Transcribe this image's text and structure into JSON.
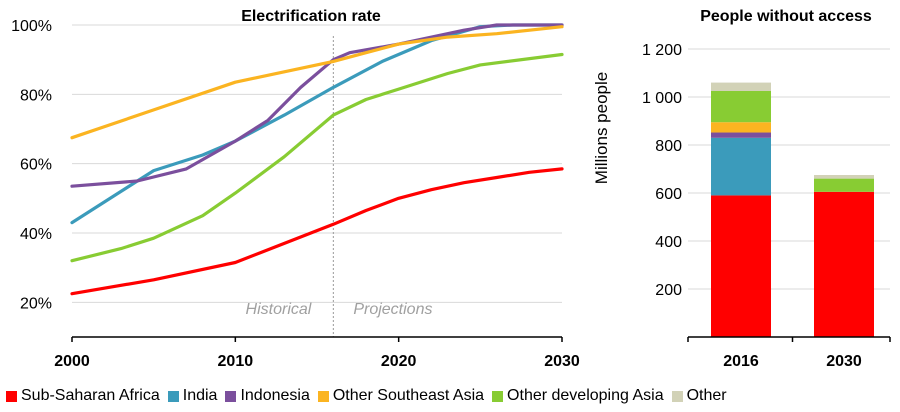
{
  "chart_data": [
    {
      "type": "line",
      "title": "Electrification rate",
      "xlabel": "",
      "ylabel": "",
      "xlim": [
        2000,
        2030
      ],
      "ylim": [
        10,
        100
      ],
      "x_ticks": [
        "2000",
        "2010",
        "2020",
        "2030"
      ],
      "y_ticks": [
        "20%",
        "40%",
        "60%",
        "80%",
        "100%"
      ],
      "grid": "horizontal",
      "annotations": {
        "divider_year": 2016,
        "left_label": "Historical",
        "right_label": "Projections"
      },
      "series": [
        {
          "name": "Sub-Saharan Africa",
          "color": "#ff0000",
          "points": [
            [
              2000,
              22.5
            ],
            [
              2005,
              26.5
            ],
            [
              2010,
              31.5
            ],
            [
              2013,
              37
            ],
            [
              2016,
              42.5
            ],
            [
              2018,
              46.5
            ],
            [
              2020,
              50
            ],
            [
              2022,
              52.5
            ],
            [
              2024,
              54.5
            ],
            [
              2026,
              56
            ],
            [
              2028,
              57.5
            ],
            [
              2030,
              58.5
            ]
          ]
        },
        {
          "name": "India",
          "color": "#3b9bbb",
          "points": [
            [
              2000,
              43
            ],
            [
              2003,
              52
            ],
            [
              2005,
              58
            ],
            [
              2008,
              62.5
            ],
            [
              2010,
              66.5
            ],
            [
              2013,
              74
            ],
            [
              2016,
              82
            ],
            [
              2019,
              89.5
            ],
            [
              2022,
              95.5
            ],
            [
              2025,
              99.5
            ],
            [
              2027,
              100
            ],
            [
              2030,
              100
            ]
          ]
        },
        {
          "name": "Indonesia",
          "color": "#7b4f9d",
          "points": [
            [
              2000,
              53.5
            ],
            [
              2004,
              55
            ],
            [
              2007,
              58.5
            ],
            [
              2010,
              66.5
            ],
            [
              2012,
              72.5
            ],
            [
              2014,
              82
            ],
            [
              2016,
              90
            ],
            [
              2017,
              92
            ],
            [
              2020,
              94.5
            ],
            [
              2024,
              98.5
            ],
            [
              2026,
              100
            ],
            [
              2030,
              100
            ]
          ]
        },
        {
          "name": "Other Southeast Asia",
          "color": "#fbb421",
          "points": [
            [
              2000,
              67.5
            ],
            [
              2005,
              75.5
            ],
            [
              2010,
              83.5
            ],
            [
              2013,
              86.5
            ],
            [
              2016,
              89.5
            ],
            [
              2018,
              92
            ],
            [
              2020,
              94.5
            ],
            [
              2023,
              96.5
            ],
            [
              2026,
              97.5
            ],
            [
              2030,
              99.5
            ]
          ]
        },
        {
          "name": "Other developing Asia",
          "color": "#88cc33",
          "points": [
            [
              2000,
              32
            ],
            [
              2003,
              35.5
            ],
            [
              2005,
              38.5
            ],
            [
              2008,
              45
            ],
            [
              2010,
              51.5
            ],
            [
              2013,
              62
            ],
            [
              2016,
              74
            ],
            [
              2018,
              78.5
            ],
            [
              2020,
              81.5
            ],
            [
              2023,
              86
            ],
            [
              2025,
              88.5
            ],
            [
              2030,
              91.5
            ]
          ]
        }
      ]
    },
    {
      "type": "bar",
      "stacked": true,
      "title": "People without access",
      "ylabel": "Millions people",
      "ylim": [
        0,
        1300
      ],
      "y_ticks": [
        "200",
        "400",
        "600",
        "800",
        "1 000",
        "1 200"
      ],
      "categories": [
        "2016",
        "2030"
      ],
      "series": [
        {
          "name": "Sub-Saharan Africa",
          "color": "#ff0000",
          "values": [
            590,
            605
          ]
        },
        {
          "name": "India",
          "color": "#3b9bbb",
          "values": [
            240,
            0
          ]
        },
        {
          "name": "Indonesia",
          "color": "#7b4f9d",
          "values": [
            22,
            0
          ]
        },
        {
          "name": "Other Southeast Asia",
          "color": "#fbb421",
          "values": [
            43,
            0
          ]
        },
        {
          "name": "Other developing Asia",
          "color": "#88cc33",
          "values": [
            130,
            55
          ]
        },
        {
          "name": "Other",
          "color": "#d2d2b7",
          "values": [
            35,
            15
          ]
        }
      ]
    }
  ],
  "legend": [
    {
      "label": "Sub-Saharan Africa",
      "color": "#ff0000"
    },
    {
      "label": "India",
      "color": "#3b9bbb"
    },
    {
      "label": "Indonesia",
      "color": "#7b4f9d"
    },
    {
      "label": "Other Southeast Asia",
      "color": "#fbb421"
    },
    {
      "label": "Other developing Asia",
      "color": "#88cc33"
    },
    {
      "label": "Other",
      "color": "#d2d2b7"
    }
  ]
}
